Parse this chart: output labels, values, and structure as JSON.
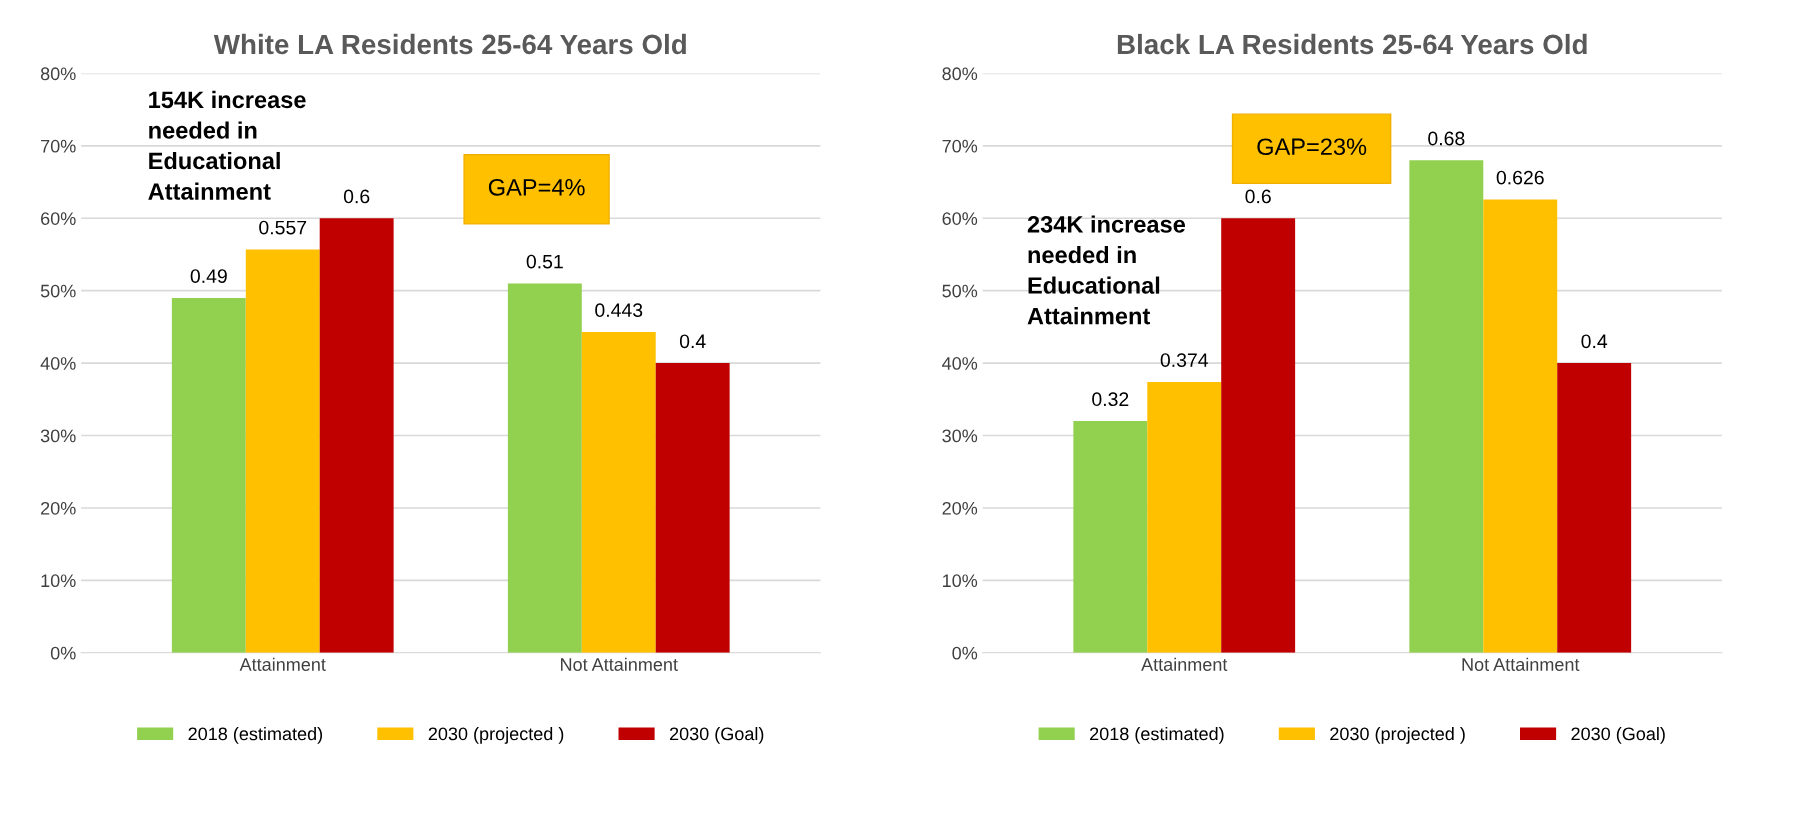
{
  "chart_data": [
    {
      "type": "bar",
      "title": "White LA Residents 25-64 Years Old",
      "categories": [
        "Attainment",
        "Not Attainment"
      ],
      "series": [
        {
          "name": "2018 (estimated)",
          "color": "#92d050",
          "values": [
            0.49,
            0.51
          ]
        },
        {
          "name": "2030 (projected )",
          "color": "#ffc000",
          "values": [
            0.557,
            0.443
          ]
        },
        {
          "name": "2030 (Goal)",
          "color": "#c00000",
          "values": [
            0.6,
            0.4
          ]
        }
      ],
      "ylim": [
        0,
        0.8
      ],
      "yticks": [
        {
          "value": 0,
          "label": "0%"
        },
        {
          "value": 0.1,
          "label": "10%"
        },
        {
          "value": 0.2,
          "label": "20%"
        },
        {
          "value": 0.3,
          "label": "30%"
        },
        {
          "value": 0.4,
          "label": "40%"
        },
        {
          "value": 0.5,
          "label": "50%"
        },
        {
          "value": 0.6,
          "label": "60%"
        },
        {
          "value": 0.7,
          "label": "70%"
        },
        {
          "value": 0.8,
          "label": "80%"
        }
      ],
      "grid": "y",
      "legend": "bottom",
      "data_labels": true,
      "annotations": [
        "154K increase needed in Educational Attainment",
        "GAP=4%"
      ]
    },
    {
      "type": "bar",
      "title": "Black LA Residents 25-64 Years Old",
      "categories": [
        "Attainment",
        "Not Attainment"
      ],
      "series": [
        {
          "name": "2018 (estimated)",
          "color": "#92d050",
          "values": [
            0.32,
            0.68
          ]
        },
        {
          "name": "2030 (projected )",
          "color": "#ffc000",
          "values": [
            0.374,
            0.626
          ]
        },
        {
          "name": "2030 (Goal)",
          "color": "#c00000",
          "values": [
            0.6,
            0.4
          ]
        }
      ],
      "ylim": [
        0,
        0.8
      ],
      "yticks": [
        {
          "value": 0,
          "label": "0%"
        },
        {
          "value": 0.1,
          "label": "10%"
        },
        {
          "value": 0.2,
          "label": "20%"
        },
        {
          "value": 0.3,
          "label": "30%"
        },
        {
          "value": 0.4,
          "label": "40%"
        },
        {
          "value": 0.5,
          "label": "50%"
        },
        {
          "value": 0.6,
          "label": "60%"
        },
        {
          "value": 0.7,
          "label": "70%"
        },
        {
          "value": 0.8,
          "label": "80%"
        }
      ],
      "grid": "y",
      "legend": "bottom",
      "data_labels": true,
      "annotations": [
        "234K increase needed in Educational Attainment",
        "GAP=23%"
      ]
    }
  ]
}
